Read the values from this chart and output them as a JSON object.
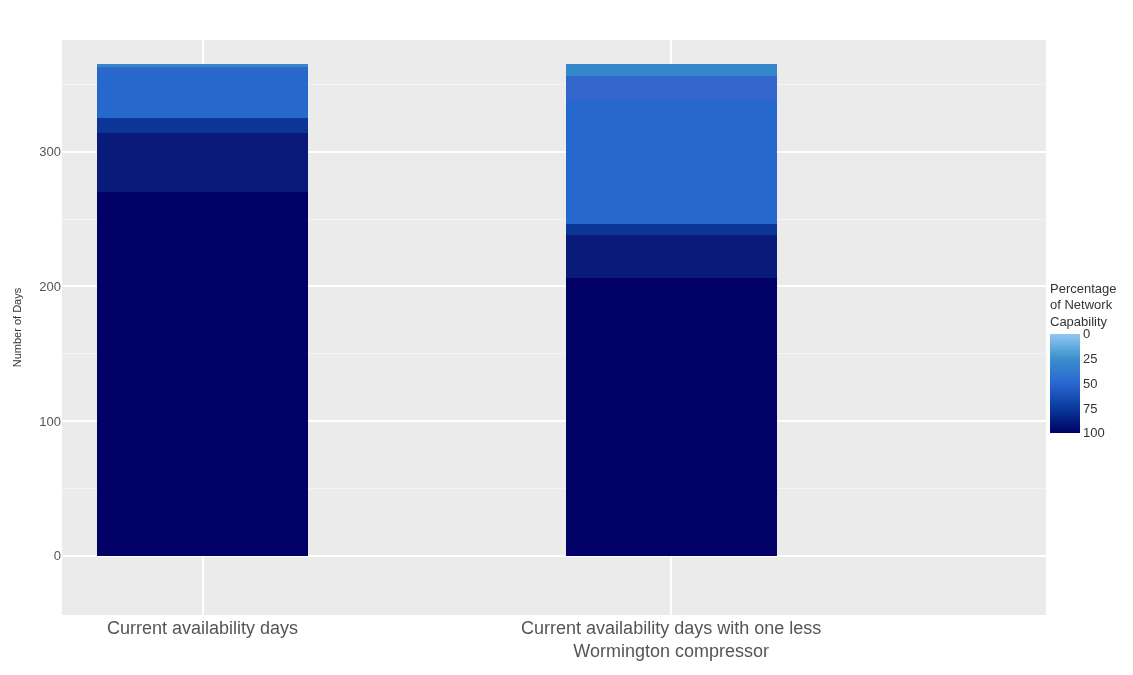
{
  "chart_data": {
    "type": "bar",
    "stacked": true,
    "ylabel": "Number of Days",
    "categories": [
      "Current availability days",
      "Current availability days with one less Wormington compressor"
    ],
    "series": [
      {
        "color": "#000066",
        "values": [
          270,
          206
        ]
      },
      {
        "color": "#0a1a78",
        "values": [
          44,
          32
        ]
      },
      {
        "color": "#0b3596",
        "values": [
          11,
          8
        ]
      },
      {
        "color": "#2668cc",
        "values": [
          36,
          92
        ]
      },
      {
        "color": "#3366cc",
        "values": [
          2,
          18
        ]
      },
      {
        "color": "#3388cc",
        "values": [
          2,
          9
        ]
      }
    ],
    "ylim": [
      -44,
      383
    ],
    "yticks": [
      0,
      100,
      200,
      300
    ],
    "grid": true,
    "clabel": "Percentage of Network Capability",
    "clim": [
      100,
      0
    ],
    "cticks": [
      0,
      25,
      50,
      75,
      100
    ]
  }
}
